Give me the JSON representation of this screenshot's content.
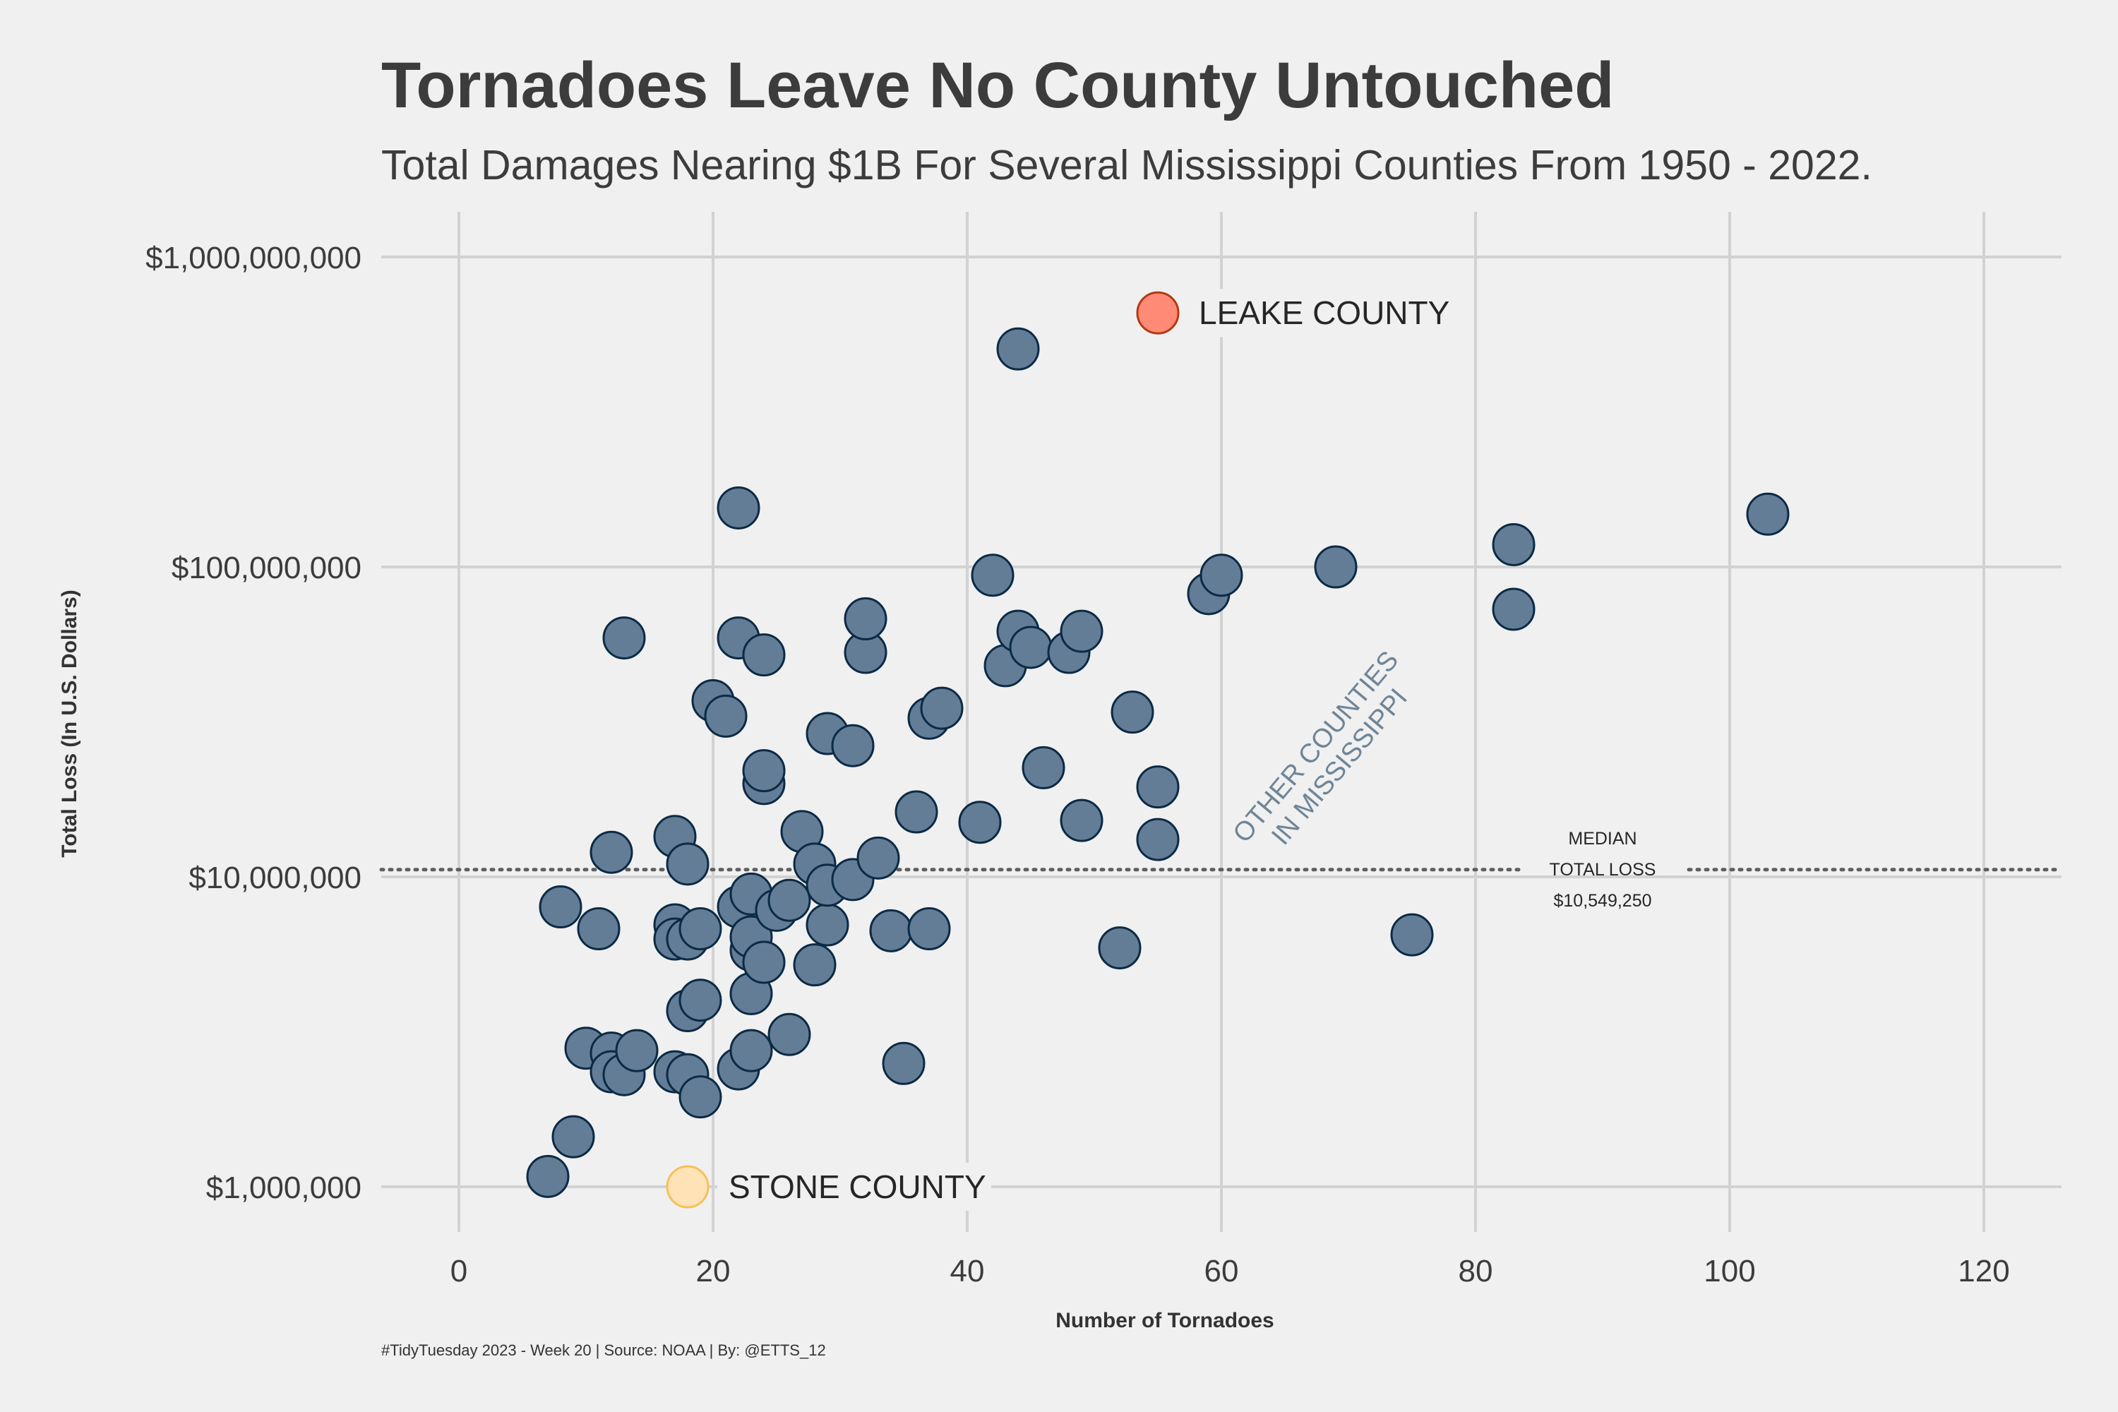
{
  "chart_data": {
    "type": "scatter",
    "title": "Tornadoes Leave No County Untouched",
    "subtitle": "Total Damages Nearing $1B For Several Mississippi Counties From 1950 - 2022.",
    "xlabel": "Number of Tornadoes",
    "ylabel": "Total Loss (In U.S. Dollars)",
    "caption": "#TidyTuesday 2023 - Week 20 | Source: NOAA | By: @ETTS_12",
    "x_scale": "linear",
    "y_scale": "log10",
    "xlim": [
      -6,
      126
    ],
    "ylim": [
      600000,
      1500000000
    ],
    "x_ticks": [
      0,
      20,
      40,
      60,
      80,
      100,
      120
    ],
    "x_tick_labels": [
      "0",
      "20",
      "40",
      "60",
      "80",
      "100",
      "120"
    ],
    "y_ticks": [
      1000000,
      10000000,
      100000000,
      1000000000
    ],
    "y_tick_labels": [
      "$1,000,000",
      "$10,000,000",
      "$100,000,000",
      "$1,000,000,000"
    ],
    "grid": true,
    "colors": {
      "background": "#f0f0f0",
      "grid": "#d2d2d2",
      "points_fill": "#647d96",
      "points_stroke": "#0b2a45",
      "leake_fill": "#ff8a75",
      "leake_stroke": "#b23a15",
      "stone_fill": "#ffe2b5",
      "stone_stroke": "#f5c15a",
      "other_text": "#6e8597"
    },
    "median": {
      "value": 10549250,
      "label_line1": "MEDIAN",
      "label_line2": "TOTAL LOSS",
      "label_value": "$10,549,250"
    },
    "other_label": {
      "line1": "OTHER COUNTIES",
      "line2": "IN MISSISSIPPI"
    },
    "highlights": [
      {
        "name": "LEAKE COUNTY",
        "x": 55,
        "y": 660000000,
        "color": "leake"
      },
      {
        "name": "STONE COUNTY",
        "x": 18,
        "y": 1000000,
        "color": "stone"
      }
    ],
    "series": [
      {
        "name": "Other Counties in Mississippi",
        "points": [
          [
            7,
            1080000
          ],
          [
            9,
            1450000
          ],
          [
            8,
            8000000
          ],
          [
            10,
            2800000
          ],
          [
            11,
            6800000
          ],
          [
            12,
            2700000
          ],
          [
            12,
            2350000
          ],
          [
            12,
            12000000
          ],
          [
            13,
            2300000
          ],
          [
            13,
            59000000
          ],
          [
            14,
            2750000
          ],
          [
            17,
            7000000
          ],
          [
            17,
            6300000
          ],
          [
            17,
            2350000
          ],
          [
            17,
            13500000
          ],
          [
            18,
            2300000
          ],
          [
            18,
            3700000
          ],
          [
            18,
            6300000
          ],
          [
            18,
            11000000
          ],
          [
            19,
            4000000
          ],
          [
            19,
            6800000
          ],
          [
            19,
            1950000
          ],
          [
            20,
            37000000
          ],
          [
            21,
            33000000
          ],
          [
            22,
            2400000
          ],
          [
            22,
            8000000
          ],
          [
            22,
            59000000
          ],
          [
            22,
            155000000
          ],
          [
            23,
            2750000
          ],
          [
            23,
            4200000
          ],
          [
            23,
            5800000
          ],
          [
            23,
            6400000
          ],
          [
            23,
            8800000
          ],
          [
            24,
            5300000
          ],
          [
            24,
            20000000
          ],
          [
            24,
            22000000
          ],
          [
            24,
            52000000
          ],
          [
            25,
            7800000
          ],
          [
            26,
            3100000
          ],
          [
            26,
            8400000
          ],
          [
            27,
            14000000
          ],
          [
            28,
            5200000
          ],
          [
            28,
            11000000
          ],
          [
            29,
            7000000
          ],
          [
            29,
            9400000
          ],
          [
            29,
            29000000
          ],
          [
            31,
            9800000
          ],
          [
            31,
            26500000
          ],
          [
            32,
            53000000
          ],
          [
            32,
            68000000
          ],
          [
            33,
            11500000
          ],
          [
            34,
            6700000
          ],
          [
            35,
            2500000
          ],
          [
            36,
            16200000
          ],
          [
            37,
            6800000
          ],
          [
            37,
            32500000
          ],
          [
            38,
            35000000
          ],
          [
            41,
            15000000
          ],
          [
            42,
            94000000
          ],
          [
            43,
            48000000
          ],
          [
            44,
            62000000
          ],
          [
            44,
            505000000
          ],
          [
            45,
            55000000
          ],
          [
            46,
            22500000
          ],
          [
            48,
            53000000
          ],
          [
            49,
            15200000
          ],
          [
            49,
            62000000
          ],
          [
            52,
            5900000
          ],
          [
            53,
            34000000
          ],
          [
            55,
            13200000
          ],
          [
            55,
            19500000
          ],
          [
            59,
            82000000
          ],
          [
            60,
            94000000
          ],
          [
            69,
            100000000
          ],
          [
            75,
            6500000
          ],
          [
            83,
            73000000
          ],
          [
            83,
            118000000
          ],
          [
            103,
            148000000
          ]
        ]
      }
    ]
  }
}
